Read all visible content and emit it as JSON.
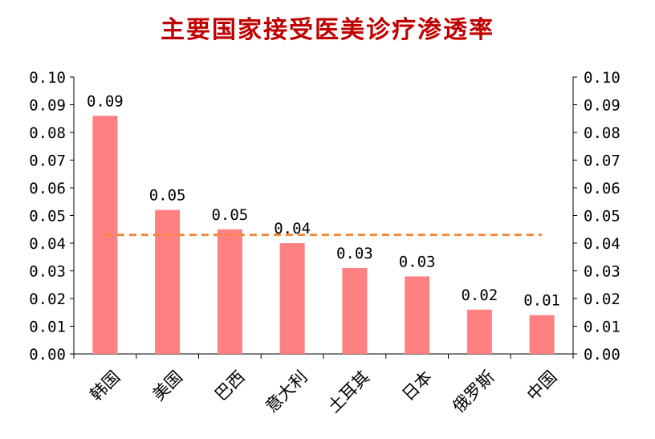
{
  "chart_data": {
    "type": "bar",
    "title": "主要国家接受医美诊疗渗透率",
    "categories": [
      "韩国",
      "美国",
      "巴西",
      "意大利",
      "土耳其",
      "日本",
      "俄罗斯",
      "中国"
    ],
    "values": [
      0.086,
      0.052,
      0.045,
      0.04,
      0.031,
      0.028,
      0.016,
      0.014
    ],
    "data_labels": [
      "0.09",
      "0.05",
      "0.05",
      "0.04",
      "0.03",
      "0.03",
      "0.02",
      "0.01"
    ],
    "ylim": [
      0,
      0.1
    ],
    "y_ticks": [
      "0.00",
      "0.01",
      "0.02",
      "0.03",
      "0.04",
      "0.05",
      "0.06",
      "0.07",
      "0.08",
      "0.09",
      "0.10"
    ],
    "average_line": 0.043,
    "bar_color": "#ff8080",
    "line_color": "#f08a3c",
    "grid": false,
    "legend": "none"
  }
}
